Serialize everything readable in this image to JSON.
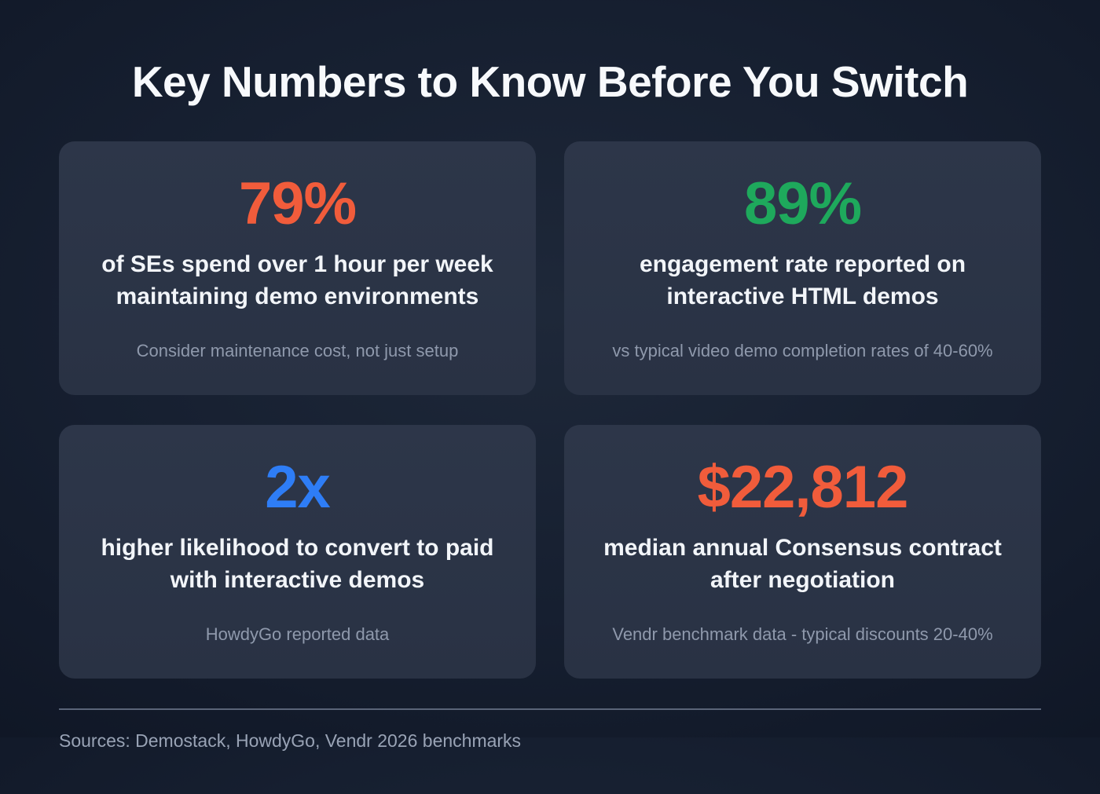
{
  "title": "Key Numbers to Know Before You Switch",
  "colors": {
    "background": "#161f30",
    "card_background": "#2b3446",
    "heading_text": "#f7f9fc",
    "muted_text": "#8f99ac",
    "accent_orange": "#f15c3b",
    "accent_green": "#1ea95c",
    "accent_blue": "#2e7df6"
  },
  "cards": [
    {
      "stat": "79%",
      "color": "#f15c3b",
      "label": "of SEs spend over 1 hour per week maintaining demo environments",
      "note": "Consider maintenance cost, not just setup"
    },
    {
      "stat": "89%",
      "color": "#1ea95c",
      "label": "engagement rate reported on interactive HTML demos",
      "note": "vs typical video demo completion rates of 40-60%"
    },
    {
      "stat": "2x",
      "color": "#2e7df6",
      "label": "higher likelihood to convert to paid with interactive demos",
      "note": "HowdyGo reported data"
    },
    {
      "stat": "$22,812",
      "color": "#f15c3b",
      "label": "median annual Consensus contract after negotiation",
      "note": "Vendr benchmark data - typical discounts 20-40%"
    }
  ],
  "footer": {
    "sources": "Sources: Demostack, HowdyGo, Vendr 2026 benchmarks"
  },
  "chart_data": {
    "type": "table",
    "title": "Key Numbers to Know Before You Switch",
    "columns": [
      "stat",
      "description",
      "note"
    ],
    "rows": [
      [
        "79%",
        "of SEs spend over 1 hour per week maintaining demo environments",
        "Consider maintenance cost, not just setup"
      ],
      [
        "89%",
        "engagement rate reported on interactive HTML demos",
        "vs typical video demo completion rates of 40-60%"
      ],
      [
        "2x",
        "higher likelihood to convert to paid with interactive demos",
        "HowdyGo reported data"
      ],
      [
        "$22,812",
        "median annual Consensus contract after negotiation",
        "Vendr benchmark data - typical discounts 20-40%"
      ]
    ],
    "legend_position": "none",
    "grid": false
  }
}
